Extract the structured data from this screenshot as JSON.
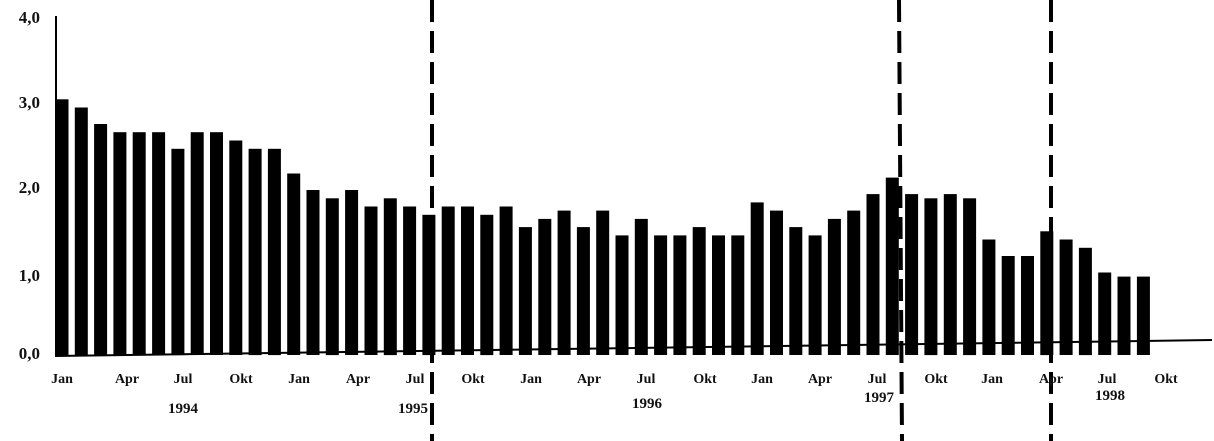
{
  "chart_data": {
    "type": "bar",
    "title": "",
    "xlabel": "",
    "ylabel": "",
    "ylim": [
      0,
      4
    ],
    "y_ticks": [
      "0,0",
      "1,0",
      "2,0",
      "3,0",
      "4,0"
    ],
    "month_labels": [
      "Jan",
      "Apr",
      "Jul",
      "Okt",
      "Jan",
      "Apr",
      "Jul",
      "Okt",
      "Jan",
      "Apr",
      "Jul",
      "Okt",
      "Jan",
      "Apr",
      "Jul",
      "Okt",
      "Jan",
      "Apr",
      "Jul",
      "Okt"
    ],
    "year_labels": [
      "1994",
      "1995",
      "1996",
      "1997",
      "1998"
    ],
    "values": [
      3.1,
      3.0,
      2.8,
      2.7,
      2.7,
      2.7,
      2.5,
      2.7,
      2.7,
      2.6,
      2.5,
      2.5,
      2.2,
      2.0,
      1.9,
      2.0,
      1.8,
      1.9,
      1.8,
      1.7,
      1.8,
      1.8,
      1.7,
      1.8,
      1.55,
      1.65,
      1.75,
      1.55,
      1.75,
      1.45,
      1.65,
      1.45,
      1.45,
      1.55,
      1.45,
      1.45,
      1.85,
      1.75,
      1.55,
      1.45,
      1.65,
      1.75,
      1.95,
      2.15,
      1.95,
      1.9,
      1.95,
      1.9,
      1.4,
      1.2,
      1.2,
      1.5,
      1.4,
      1.3,
      1.0,
      0.95,
      0.95
    ],
    "markers": [
      "Jul 1995",
      "Jul 1997",
      "Apr 1998"
    ],
    "colors": {
      "bar": "#000000",
      "axis": "#000000",
      "marker": "#000000"
    }
  }
}
